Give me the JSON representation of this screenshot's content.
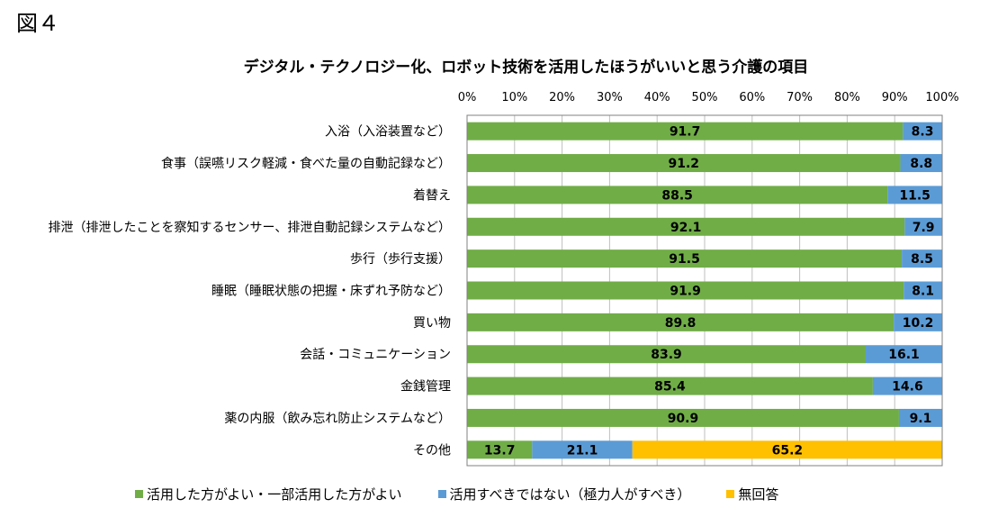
{
  "figure_label": "図４",
  "chart_data": {
    "type": "bar",
    "orientation": "horizontal",
    "stacked": true,
    "title": "デジタル・テクノロジー化、ロボット技術を活用したほうがいいと思う介護の項目",
    "xlim": [
      0,
      100
    ],
    "x_ticks": [
      "0%",
      "10%",
      "20%",
      "30%",
      "40%",
      "50%",
      "60%",
      "70%",
      "80%",
      "90%",
      "100%"
    ],
    "x_axis_position": "top",
    "grid": true,
    "legend_position": "bottom",
    "categories": [
      "入浴（入浴装置など）",
      "食事（誤嚥リスク軽減・食べた量の自動記録など）",
      "着替え",
      "排泄（排泄したことを察知するセンサー、排泄自動記録システムなど）",
      "歩行（歩行支援）",
      "睡眠（睡眠状態の把握・床ずれ予防など）",
      "買い物",
      "会話・コミュニケーション",
      "金銭管理",
      "薬の内服（飲み忘れ防止システムなど）",
      "その他"
    ],
    "series": [
      {
        "name": "活用した方がよい・一部活用した方がよい",
        "color": "#70AD47",
        "values": [
          91.7,
          91.2,
          88.5,
          92.1,
          91.5,
          91.9,
          89.8,
          83.9,
          85.4,
          90.9,
          13.7
        ]
      },
      {
        "name": "活用すべきではない（極力人がすべき）",
        "color": "#5B9BD5",
        "values": [
          8.3,
          8.8,
          11.5,
          7.9,
          8.5,
          8.1,
          10.2,
          16.1,
          14.6,
          9.1,
          21.1
        ]
      },
      {
        "name": "無回答",
        "color": "#FFC000",
        "values": [
          0,
          0,
          0,
          0,
          0,
          0,
          0,
          0,
          0,
          0,
          65.2
        ]
      }
    ]
  }
}
